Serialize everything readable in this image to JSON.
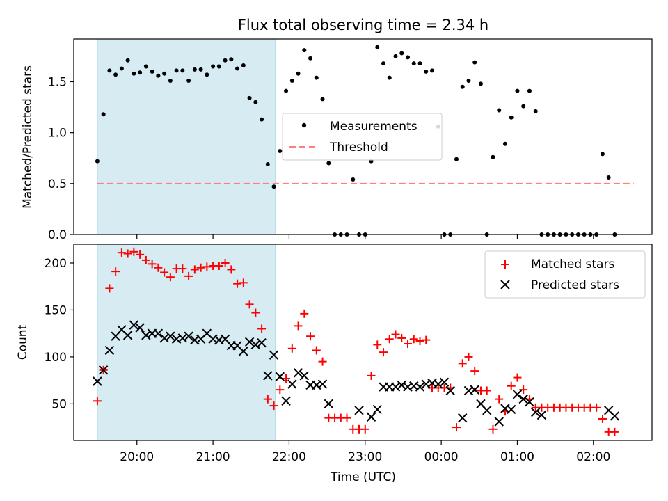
{
  "title": "Flux total observing time = 2.34 h",
  "colors": {
    "shade": "#add8e6",
    "measure": "#000000",
    "threshold": "#ff7f7f",
    "matched": "#ff0000",
    "predicted": "#000000"
  },
  "chart_data": [
    {
      "type": "scatter",
      "ylabel": "Matched/Predicted stars",
      "ylim": [
        0,
        1.92
      ],
      "yticks": [
        "0.0",
        "0.5",
        "1.0",
        "1.5"
      ],
      "x_unit": "hours from 00:00 UTC (negative = before midnight)",
      "xlim": [
        -4.83,
        2.77
      ],
      "shaded_interval": [
        -4.52,
        -2.18
      ],
      "threshold": {
        "name": "Threshold",
        "y": 0.5,
        "x": [
          -4.52,
          2.53
        ]
      },
      "legend": {
        "position": "center",
        "entries": [
          "Measurements",
          "Threshold"
        ]
      },
      "series": [
        {
          "name": "Measurements",
          "marker": "dot",
          "points": [
            [
              -4.52,
              0.72
            ],
            [
              -4.44,
              1.18
            ],
            [
              -4.36,
              1.61
            ],
            [
              -4.28,
              1.57
            ],
            [
              -4.2,
              1.63
            ],
            [
              -4.12,
              1.71
            ],
            [
              -4.04,
              1.58
            ],
            [
              -3.96,
              1.59
            ],
            [
              -3.88,
              1.65
            ],
            [
              -3.8,
              1.6
            ],
            [
              -3.72,
              1.56
            ],
            [
              -3.64,
              1.58
            ],
            [
              -3.56,
              1.51
            ],
            [
              -3.48,
              1.61
            ],
            [
              -3.4,
              1.61
            ],
            [
              -3.32,
              1.51
            ],
            [
              -3.24,
              1.62
            ],
            [
              -3.16,
              1.62
            ],
            [
              -3.08,
              1.57
            ],
            [
              -3.0,
              1.65
            ],
            [
              -2.92,
              1.65
            ],
            [
              -2.84,
              1.71
            ],
            [
              -2.76,
              1.72
            ],
            [
              -2.68,
              1.63
            ],
            [
              -2.6,
              1.66
            ],
            [
              -2.52,
              1.34
            ],
            [
              -2.44,
              1.3
            ],
            [
              -2.36,
              1.13
            ],
            [
              -2.28,
              0.69
            ],
            [
              -2.2,
              0.47
            ],
            [
              -2.12,
              0.82
            ],
            [
              -2.04,
              1.41
            ],
            [
              -1.96,
              1.51
            ],
            [
              -1.88,
              1.58
            ],
            [
              -1.8,
              1.81
            ],
            [
              -1.72,
              1.73
            ],
            [
              -1.64,
              1.54
            ],
            [
              -1.56,
              1.33
            ],
            [
              -1.48,
              0.7
            ],
            [
              -1.4,
              0.0
            ],
            [
              -1.32,
              0.0
            ],
            [
              -1.24,
              0.0
            ],
            [
              -1.16,
              0.54
            ],
            [
              -1.08,
              0.0
            ],
            [
              -1.0,
              0.0
            ],
            [
              -0.92,
              0.72
            ],
            [
              -0.84,
              1.84
            ],
            [
              -0.76,
              1.68
            ],
            [
              -0.68,
              1.54
            ],
            [
              -0.6,
              1.75
            ],
            [
              -0.52,
              1.78
            ],
            [
              -0.44,
              1.74
            ],
            [
              -0.36,
              1.68
            ],
            [
              -0.28,
              1.68
            ],
            [
              -0.2,
              1.6
            ],
            [
              -0.12,
              1.61
            ],
            [
              -0.04,
              1.06
            ],
            [
              0.04,
              0.0
            ],
            [
              0.12,
              0.0
            ],
            [
              0.2,
              0.74
            ],
            [
              0.28,
              1.45
            ],
            [
              0.36,
              1.51
            ],
            [
              0.44,
              1.69
            ],
            [
              0.52,
              1.48
            ],
            [
              0.6,
              0.0
            ],
            [
              0.68,
              0.76
            ],
            [
              0.76,
              1.22
            ],
            [
              0.84,
              0.89
            ],
            [
              0.92,
              1.15
            ],
            [
              1.0,
              1.41
            ],
            [
              1.08,
              1.26
            ],
            [
              1.16,
              1.41
            ],
            [
              1.24,
              1.21
            ],
            [
              1.32,
              0.0
            ],
            [
              1.4,
              0.0
            ],
            [
              1.48,
              0.0
            ],
            [
              1.56,
              0.0
            ],
            [
              1.64,
              0.0
            ],
            [
              1.72,
              0.0
            ],
            [
              1.8,
              0.0
            ],
            [
              1.88,
              0.0
            ],
            [
              1.96,
              0.0
            ],
            [
              2.04,
              0.0
            ],
            [
              2.12,
              0.79
            ],
            [
              2.2,
              0.56
            ],
            [
              2.28,
              0.0
            ]
          ]
        }
      ]
    },
    {
      "type": "scatter",
      "xlabel": "Time (UTC)",
      "ylabel": "Count",
      "ylim": [
        11,
        220
      ],
      "yticks": [
        "50",
        "100",
        "150",
        "200"
      ],
      "xticks": [
        {
          "label": "20:00",
          "x": -4.0
        },
        {
          "label": "21:00",
          "x": -3.0
        },
        {
          "label": "22:00",
          "x": -2.0
        },
        {
          "label": "23:00",
          "x": -1.0
        },
        {
          "label": "00:00",
          "x": 0.0
        },
        {
          "label": "01:00",
          "x": 1.0
        },
        {
          "label": "02:00",
          "x": 2.0
        }
      ],
      "x_unit": "hours from 00:00 UTC (negative = before midnight)",
      "xlim": [
        -4.83,
        2.77
      ],
      "shaded_interval": [
        -4.52,
        -2.18
      ],
      "legend": {
        "position": "upper right",
        "entries": [
          "Matched stars",
          "Predicted stars"
        ]
      },
      "series": [
        {
          "name": "Matched stars",
          "marker": "plus",
          "points": [
            [
              -4.52,
              53
            ],
            [
              -4.44,
              86
            ],
            [
              -4.36,
              173
            ],
            [
              -4.28,
              191
            ],
            [
              -4.2,
              211
            ],
            [
              -4.12,
              210
            ],
            [
              -4.04,
              212
            ],
            [
              -3.96,
              209
            ],
            [
              -3.88,
              203
            ],
            [
              -3.8,
              199
            ],
            [
              -3.72,
              195
            ],
            [
              -3.64,
              190
            ],
            [
              -3.56,
              185
            ],
            [
              -3.48,
              194
            ],
            [
              -3.4,
              194
            ],
            [
              -3.32,
              186
            ],
            [
              -3.24,
              193
            ],
            [
              -3.16,
              195
            ],
            [
              -3.08,
              196
            ],
            [
              -3.0,
              197
            ],
            [
              -2.92,
              197
            ],
            [
              -2.84,
              200
            ],
            [
              -2.76,
              193
            ],
            [
              -2.68,
              178
            ],
            [
              -2.6,
              179
            ],
            [
              -2.52,
              156
            ],
            [
              -2.44,
              147
            ],
            [
              -2.36,
              130
            ],
            [
              -2.28,
              55
            ],
            [
              -2.2,
              48
            ],
            [
              -2.12,
              65
            ],
            [
              -2.04,
              77
            ],
            [
              -1.96,
              109
            ],
            [
              -1.88,
              133
            ],
            [
              -1.8,
              146
            ],
            [
              -1.72,
              122
            ],
            [
              -1.64,
              107
            ],
            [
              -1.56,
              95
            ],
            [
              -1.48,
              35
            ],
            [
              -1.4,
              35
            ],
            [
              -1.32,
              35
            ],
            [
              -1.24,
              35
            ],
            [
              -1.16,
              23
            ],
            [
              -1.08,
              23
            ],
            [
              -1.0,
              23
            ],
            [
              -0.92,
              80
            ],
            [
              -0.84,
              113
            ],
            [
              -0.76,
              105
            ],
            [
              -0.68,
              119
            ],
            [
              -0.6,
              124
            ],
            [
              -0.52,
              120
            ],
            [
              -0.44,
              114
            ],
            [
              -0.36,
              119
            ],
            [
              -0.28,
              117
            ],
            [
              -0.2,
              118
            ],
            [
              -0.12,
              67
            ],
            [
              -0.04,
              67
            ],
            [
              0.04,
              67
            ],
            [
              0.12,
              67
            ],
            [
              0.2,
              25
            ],
            [
              0.28,
              93
            ],
            [
              0.36,
              100
            ],
            [
              0.44,
              85
            ],
            [
              0.52,
              64
            ],
            [
              0.6,
              64
            ],
            [
              0.68,
              23
            ],
            [
              0.76,
              55
            ],
            [
              0.84,
              42
            ],
            [
              0.92,
              69
            ],
            [
              1.0,
              78
            ],
            [
              1.08,
              65
            ],
            [
              1.16,
              55
            ],
            [
              1.24,
              46
            ],
            [
              1.32,
              46
            ],
            [
              1.4,
              46
            ],
            [
              1.48,
              46
            ],
            [
              1.56,
              46
            ],
            [
              1.64,
              46
            ],
            [
              1.72,
              46
            ],
            [
              1.8,
              46
            ],
            [
              1.88,
              46
            ],
            [
              1.96,
              46
            ],
            [
              2.04,
              46
            ],
            [
              2.12,
              34
            ],
            [
              2.2,
              20
            ],
            [
              2.28,
              20
            ]
          ]
        },
        {
          "name": "Predicted stars",
          "marker": "x",
          "points": [
            [
              -4.52,
              74
            ],
            [
              -4.44,
              86
            ],
            [
              -4.36,
              107
            ],
            [
              -4.28,
              122
            ],
            [
              -4.2,
              129
            ],
            [
              -4.12,
              123
            ],
            [
              -4.04,
              134
            ],
            [
              -3.96,
              131
            ],
            [
              -3.88,
              123
            ],
            [
              -3.8,
              125
            ],
            [
              -3.72,
              125
            ],
            [
              -3.64,
              120
            ],
            [
              -3.56,
              122
            ],
            [
              -3.48,
              119
            ],
            [
              -3.4,
              120
            ],
            [
              -3.32,
              122
            ],
            [
              -3.24,
              118
            ],
            [
              -3.16,
              119
            ],
            [
              -3.08,
              125
            ],
            [
              -3.0,
              119
            ],
            [
              -2.92,
              118
            ],
            [
              -2.84,
              119
            ],
            [
              -2.76,
              112
            ],
            [
              -2.68,
              112
            ],
            [
              -2.6,
              106
            ],
            [
              -2.52,
              116
            ],
            [
              -2.44,
              113
            ],
            [
              -2.36,
              115
            ],
            [
              -2.28,
              80
            ],
            [
              -2.2,
              102
            ],
            [
              -2.12,
              79
            ],
            [
              -2.04,
              53
            ],
            [
              -1.96,
              71
            ],
            [
              -1.88,
              83
            ],
            [
              -1.8,
              80
            ],
            [
              -1.72,
              70
            ],
            [
              -1.64,
              70
            ],
            [
              -1.56,
              71
            ],
            [
              -1.48,
              50
            ],
            [
              -1.08,
              43
            ],
            [
              -0.92,
              36
            ],
            [
              -0.84,
              44
            ],
            [
              -0.76,
              68
            ],
            [
              -0.68,
              68
            ],
            [
              -0.6,
              68
            ],
            [
              -0.52,
              70
            ],
            [
              -0.44,
              68
            ],
            [
              -0.36,
              69
            ],
            [
              -0.28,
              68
            ],
            [
              -0.2,
              71
            ],
            [
              -0.12,
              72
            ],
            [
              -0.04,
              71
            ],
            [
              0.04,
              73
            ],
            [
              0.12,
              64
            ],
            [
              0.28,
              35
            ],
            [
              0.36,
              64
            ],
            [
              0.44,
              65
            ],
            [
              0.52,
              50
            ],
            [
              0.6,
              43
            ],
            [
              0.76,
              31
            ],
            [
              0.84,
              45
            ],
            [
              0.92,
              44
            ],
            [
              1.0,
              60
            ],
            [
              1.08,
              55
            ],
            [
              1.16,
              52
            ],
            [
              1.24,
              41
            ],
            [
              1.32,
              38
            ],
            [
              2.2,
              43
            ],
            [
              2.28,
              37
            ]
          ]
        }
      ]
    }
  ]
}
